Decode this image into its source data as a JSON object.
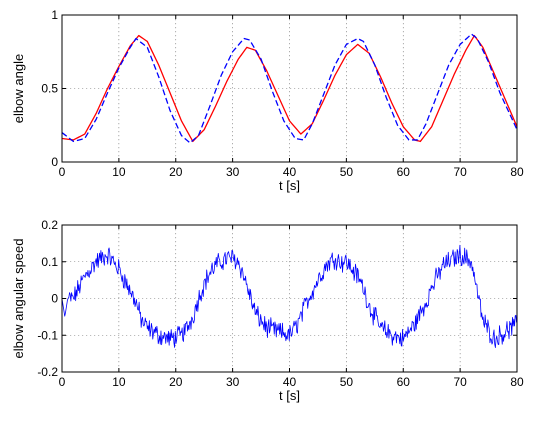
{
  "chart_data": [
    {
      "type": "line",
      "xlabel": "t [s]",
      "ylabel": "elbow angle",
      "xlim": [
        0,
        80
      ],
      "ylim": [
        0,
        1
      ],
      "xticks": [
        "0",
        "10",
        "20",
        "30",
        "40",
        "50",
        "60",
        "70",
        "80"
      ],
      "yticks": [
        "0",
        "0.5",
        "1"
      ],
      "grid": true,
      "series": [
        {
          "color": "#ff0000",
          "style": "solid",
          "x": [
            0,
            2,
            4,
            6,
            8,
            10,
            12,
            13.5,
            15,
            17,
            19,
            21,
            23,
            25,
            27,
            29,
            31,
            32.5,
            34,
            36,
            38,
            40,
            42,
            44,
            46,
            48,
            50,
            52,
            54,
            56,
            58,
            60,
            62,
            63,
            65,
            67,
            69,
            71,
            72.5,
            74,
            76,
            78,
            80
          ],
          "y": [
            0.16,
            0.15,
            0.19,
            0.33,
            0.5,
            0.65,
            0.79,
            0.86,
            0.82,
            0.66,
            0.47,
            0.28,
            0.14,
            0.22,
            0.38,
            0.55,
            0.7,
            0.78,
            0.76,
            0.62,
            0.45,
            0.28,
            0.19,
            0.26,
            0.42,
            0.59,
            0.73,
            0.8,
            0.74,
            0.58,
            0.4,
            0.24,
            0.15,
            0.14,
            0.24,
            0.42,
            0.6,
            0.76,
            0.86,
            0.78,
            0.6,
            0.42,
            0.24
          ]
        },
        {
          "color": "#0000ff",
          "style": "dashed",
          "x": [
            0,
            2,
            4,
            6,
            8,
            10,
            12,
            13,
            15,
            17,
            19,
            21,
            22.5,
            24,
            26,
            28,
            30,
            32,
            33,
            35,
            37,
            39,
            41,
            42.5,
            44,
            46,
            48,
            50,
            52,
            53,
            55,
            57,
            59,
            61,
            62.5,
            64,
            66,
            68,
            70,
            72,
            73,
            75,
            77,
            80
          ],
          "y": [
            0.2,
            0.14,
            0.16,
            0.29,
            0.47,
            0.64,
            0.78,
            0.84,
            0.78,
            0.58,
            0.35,
            0.18,
            0.13,
            0.18,
            0.38,
            0.59,
            0.75,
            0.84,
            0.83,
            0.7,
            0.48,
            0.28,
            0.16,
            0.15,
            0.26,
            0.46,
            0.66,
            0.8,
            0.84,
            0.82,
            0.66,
            0.44,
            0.25,
            0.15,
            0.15,
            0.26,
            0.46,
            0.66,
            0.8,
            0.87,
            0.84,
            0.68,
            0.47,
            0.22
          ]
        }
      ]
    },
    {
      "type": "line",
      "xlabel": "t [s]",
      "ylabel": "elbow angular speed",
      "xlim": [
        0,
        80
      ],
      "ylim": [
        -0.2,
        0.2
      ],
      "xticks": [
        "0",
        "10",
        "20",
        "30",
        "40",
        "50",
        "60",
        "70",
        "80"
      ],
      "yticks": [
        "-0.2",
        "-0.1",
        "0",
        "0.1",
        "0.2"
      ],
      "grid": true,
      "series": [
        {
          "color": "#0000ff",
          "style": "solid",
          "noisy": true,
          "x": [
            0,
            0.5,
            1,
            2,
            3,
            4,
            5,
            6,
            7,
            8,
            9,
            10,
            11,
            12,
            13,
            14,
            15,
            17,
            19,
            21,
            22,
            23,
            24,
            25,
            26,
            27,
            28,
            29,
            30,
            31,
            32,
            33,
            34,
            36,
            38,
            40,
            41,
            42,
            43,
            44,
            45,
            46,
            47,
            48,
            49,
            50,
            51,
            52,
            53,
            54,
            56,
            58,
            60,
            61,
            62,
            63,
            64,
            65,
            66,
            67,
            68,
            69,
            70,
            71,
            72,
            73,
            74,
            76,
            78,
            80
          ],
          "y": [
            0,
            -0.05,
            0,
            0,
            0.03,
            0.06,
            0.08,
            0.1,
            0.11,
            0.12,
            0.1,
            0.08,
            0.05,
            0.02,
            -0.01,
            -0.06,
            -0.08,
            -0.1,
            -0.11,
            -0.1,
            -0.08,
            -0.05,
            0.0,
            0.04,
            0.07,
            0.09,
            0.1,
            0.11,
            0.11,
            0.1,
            0.06,
            0.01,
            -0.04,
            -0.08,
            -0.09,
            -0.1,
            -0.08,
            -0.05,
            -0.01,
            0.02,
            0.05,
            0.08,
            0.1,
            0.11,
            0.1,
            0.1,
            0.08,
            0.06,
            0.03,
            -0.02,
            -0.08,
            -0.1,
            -0.11,
            -0.09,
            -0.07,
            -0.04,
            -0.01,
            0.03,
            0.06,
            0.09,
            0.1,
            0.11,
            0.12,
            0.11,
            0.1,
            0.02,
            -0.06,
            -0.11,
            -0.09,
            -0.07
          ]
        }
      ]
    }
  ]
}
